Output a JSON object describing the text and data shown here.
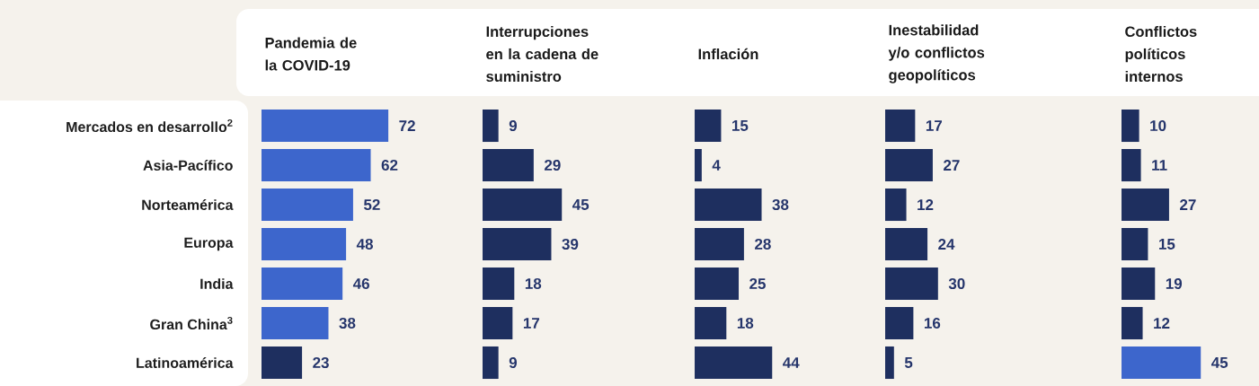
{
  "chart_data": [
    {
      "type": "bar",
      "orientation": "horizontal",
      "title": "Pandemia de la COVID-19",
      "categories": [
        "Mercados en desarrollo$^{2}$",
        "Asia-Pacífico",
        "Norteamérica",
        "Europa",
        "India",
        "Gran China$^{3}$",
        "Latinoamérica"
      ],
      "values": [
        72,
        62,
        52,
        48,
        46,
        38,
        23
      ],
      "colors": [
        "#3d66cc",
        "#3d66cc",
        "#3d66cc",
        "#3d66cc",
        "#3d66cc",
        "#3d66cc",
        "#1e2f5f"
      ],
      "data_labels": true,
      "tick_labels": "y"
    },
    {
      "type": "bar",
      "orientation": "horizontal",
      "title": "Interrupciones en la cadena de suministro",
      "categories": [
        null,
        null,
        null,
        null,
        null,
        null,
        null
      ],
      "values": [
        9,
        29,
        45,
        39,
        18,
        17,
        9
      ],
      "colors": [
        "#1e2f5f",
        "#1e2f5f",
        "#1e2f5f",
        "#1e2f5f",
        "#1e2f5f",
        "#1e2f5f",
        "#1e2f5f"
      ],
      "data_labels": true,
      "tick_labels": false
    },
    {
      "type": "bar",
      "orientation": "horizontal",
      "title": "Inflación",
      "categories": [
        null,
        null,
        null,
        null,
        null,
        null,
        null
      ],
      "values": [
        15,
        4,
        38,
        28,
        25,
        18,
        44
      ],
      "colors": [
        "#1e2f5f",
        "#1e2f5f",
        "#1e2f5f",
        "#1e2f5f",
        "#1e2f5f",
        "#1e2f5f",
        "#1e2f5f"
      ],
      "data_labels": true,
      "tick_labels": false
    },
    {
      "type": "bar",
      "orientation": "horizontal",
      "title": "Inestabilidad y/o conflictos geopolíticos",
      "categories": [
        null,
        null,
        null,
        null,
        null,
        null,
        null
      ],
      "values": [
        17,
        27,
        12,
        24,
        30,
        16,
        5
      ],
      "colors": [
        "#1e2f5f",
        "#1e2f5f",
        "#1e2f5f",
        "#1e2f5f",
        "#1e2f5f",
        "#1e2f5f",
        "#1e2f5f"
      ],
      "data_labels": true,
      "tick_labels": false
    },
    {
      "type": "bar",
      "orientation": "horizontal",
      "title": "Conflictos políticos internos",
      "categories": [
        null,
        null,
        null,
        null,
        null,
        null,
        null
      ],
      "values": [
        10,
        11,
        27,
        15,
        19,
        12,
        45
      ],
      "colors": [
        "#1e2f5f",
        "#1e2f5f",
        "#1e2f5f",
        "#1e2f5f",
        "#1e2f5f",
        "#1e2f5f",
        "#3d66cc"
      ],
      "data_labels": true,
      "tick_labels": false
    }
  ]
}
